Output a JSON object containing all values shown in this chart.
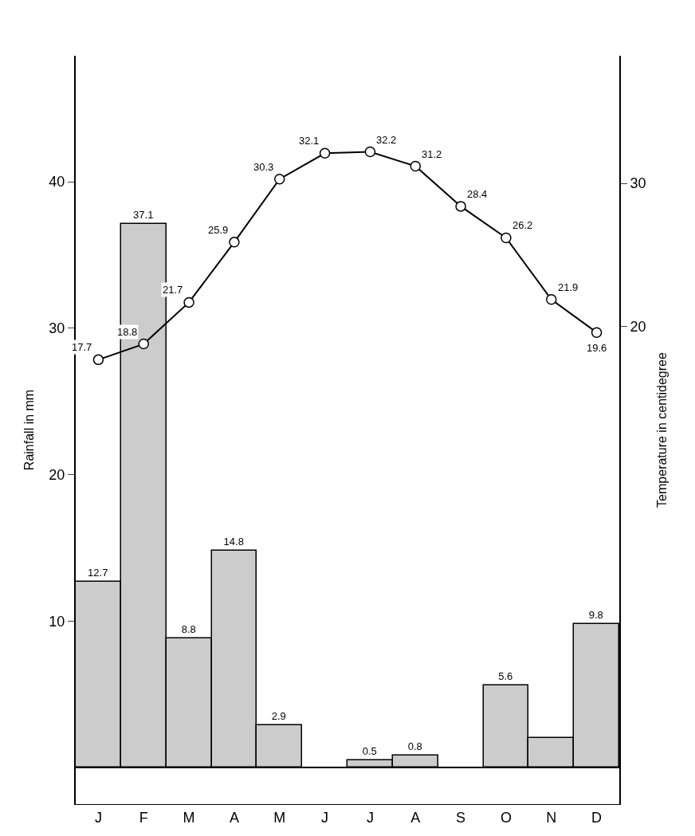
{
  "chart_data": {
    "type": "bar",
    "categories": [
      "J",
      "F",
      "M",
      "A",
      "M",
      "J",
      "J",
      "A",
      "S",
      "O",
      "N",
      "D"
    ],
    "series": [
      {
        "type": "bar",
        "color": "#cccccc",
        "values": [
          12.7,
          37.1,
          8.8,
          14.8,
          2.9,
          0,
          0.5,
          0.8,
          0,
          5.6,
          2.0,
          9.8
        ],
        "value_labels": [
          "12.7",
          "37.1",
          "8.8",
          "14.8",
          "2.9",
          null,
          "0.5",
          "0.8",
          null,
          "5.6",
          null,
          "9.8"
        ]
      },
      {
        "type": "line",
        "axis": "y2",
        "color": "#000000",
        "marker": "circle",
        "values": [
          17.7,
          18.8,
          21.7,
          25.9,
          30.3,
          32.1,
          32.2,
          31.2,
          28.4,
          26.2,
          21.9,
          19.6
        ],
        "value_labels": [
          "17.7",
          "18.8",
          "21.7",
          "25.9",
          "30.3",
          "32.1",
          "32.2",
          "31.2",
          "28.4",
          "26.2",
          "21.9",
          "19.6"
        ]
      }
    ],
    "ylabel": "Rainfall in mm",
    "y2label": "Temperature in centidegree",
    "ylim": [
      -2.5,
      48.6
    ],
    "yticks": [
      10,
      20,
      30,
      40
    ],
    "y2lim": [
      -13.3,
      38.9
    ],
    "y2ticks": [
      20,
      30
    ],
    "grid": false,
    "legend": false
  }
}
